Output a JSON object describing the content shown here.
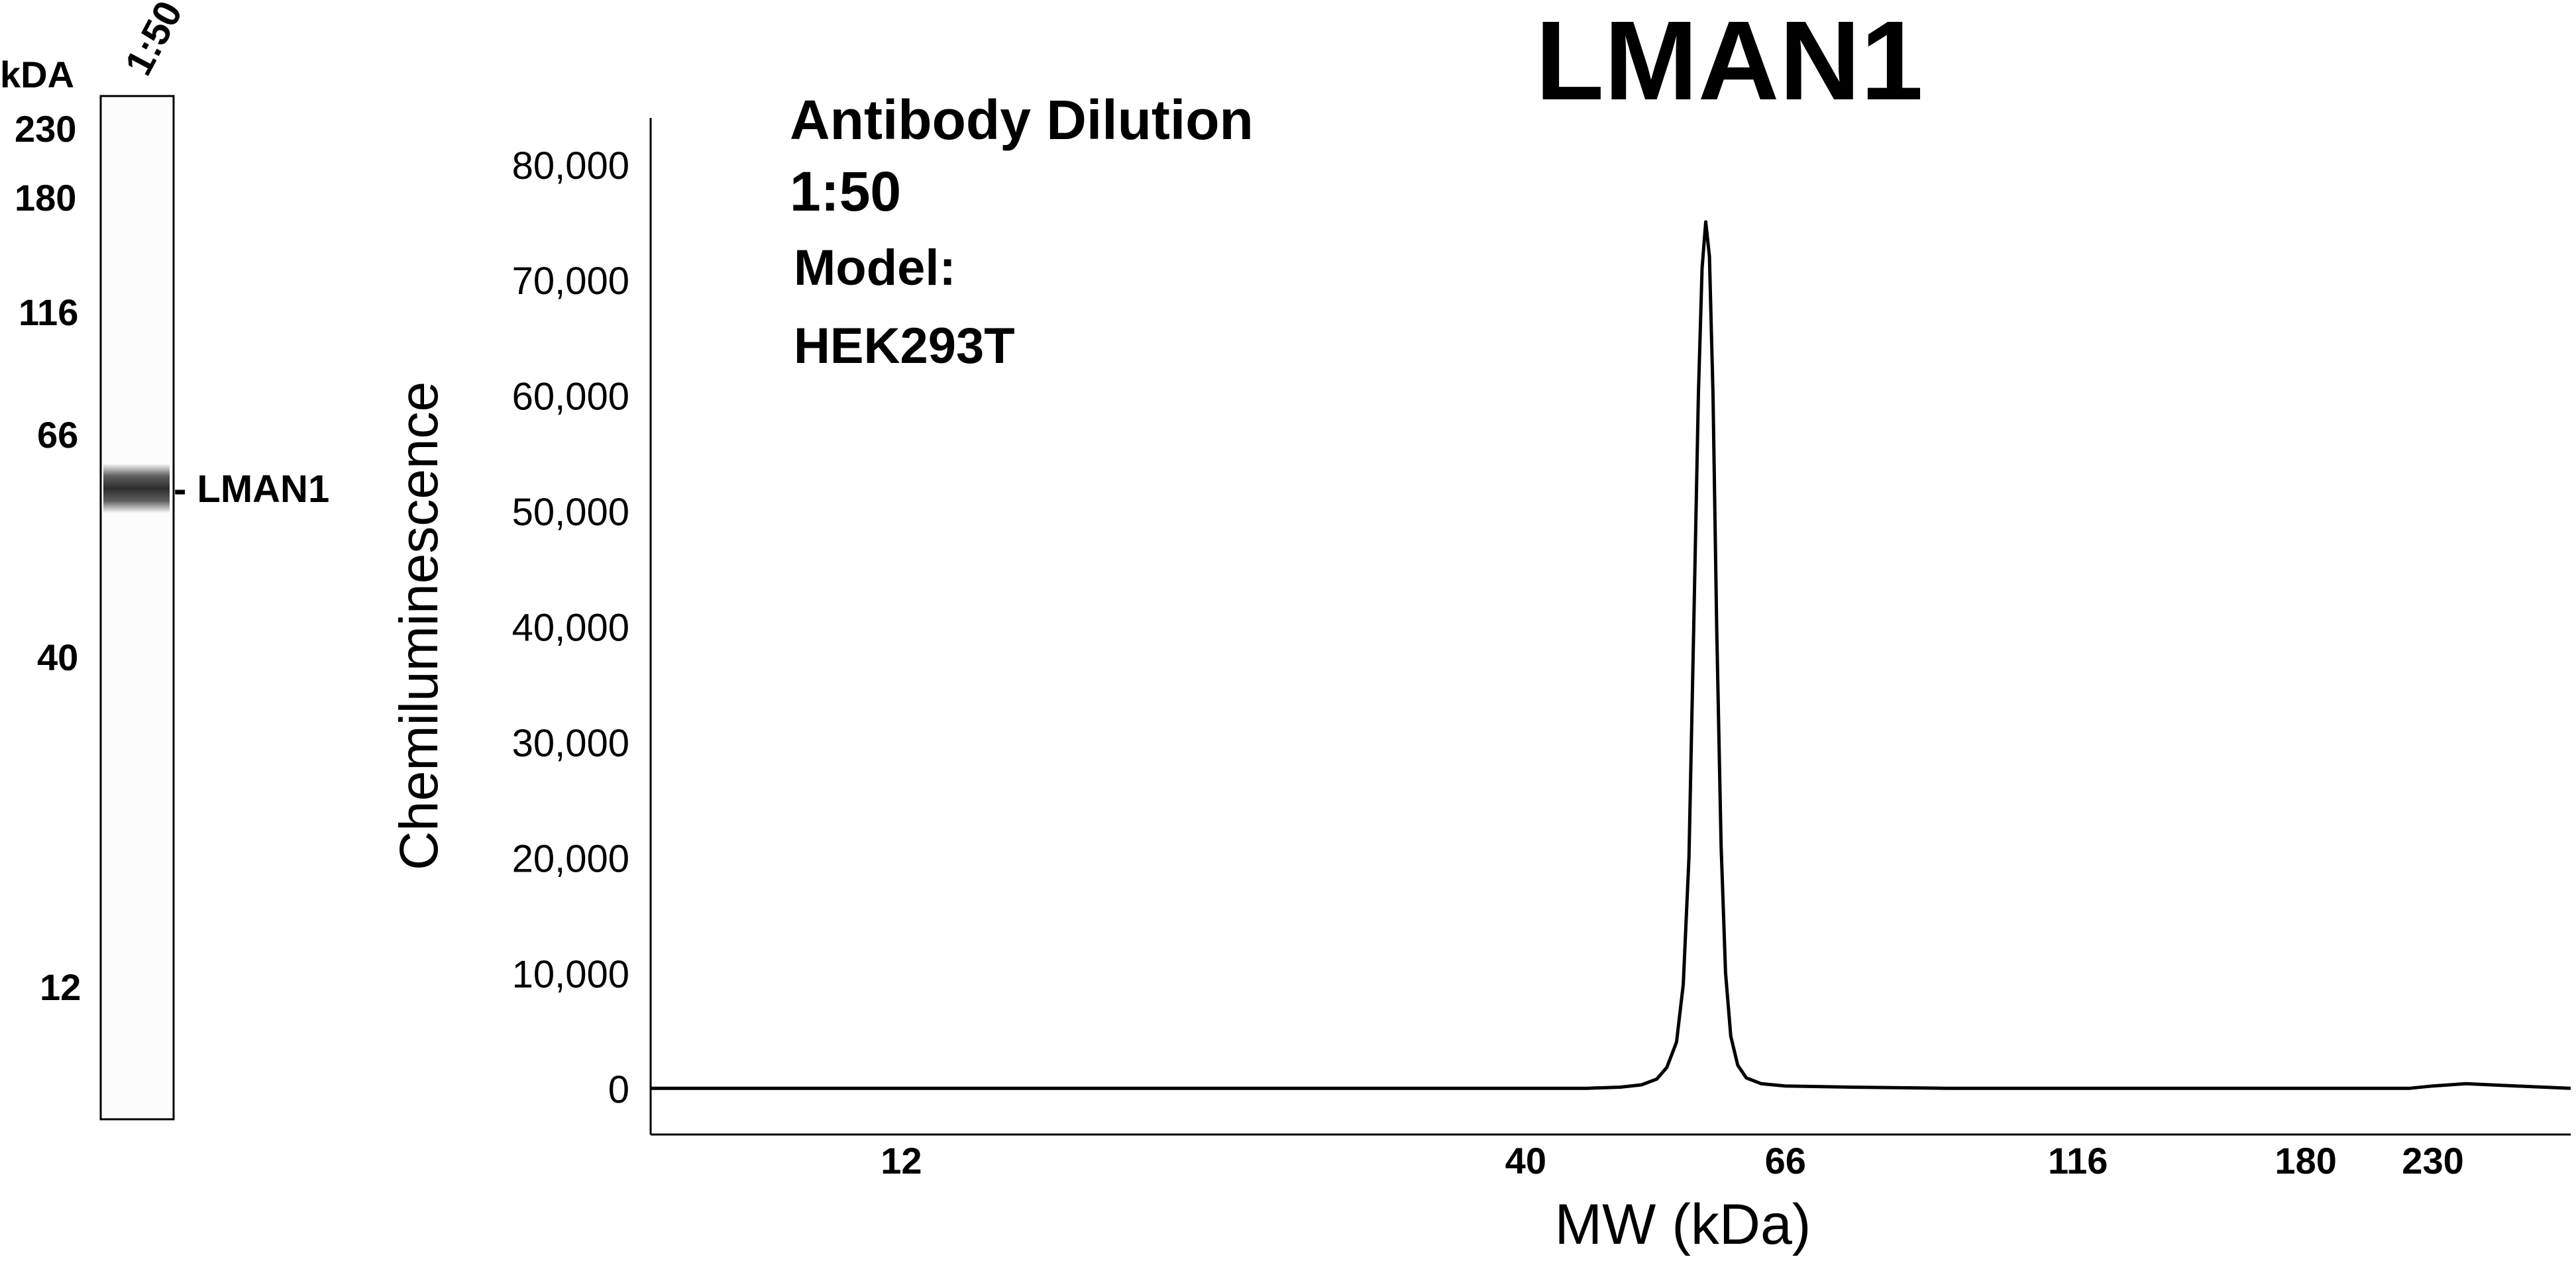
{
  "gel": {
    "unit_label": "kDA",
    "lane_label": "1:50",
    "markers": [
      "230",
      "180",
      "116",
      "66",
      "40",
      "12"
    ],
    "band_label": "- LMAN1"
  },
  "annotation": {
    "line1": "Antibody Dilution",
    "line2": "1:50",
    "line3": "Model:",
    "line4": "HEK293T"
  },
  "chart_data": {
    "type": "line",
    "title": "LMAN1",
    "xlabel": "MW (kDa)",
    "ylabel": "Chemiluminescence",
    "x_scale": "log",
    "x_ticks": [
      12,
      40,
      66,
      116,
      180,
      230
    ],
    "x_tick_labels": [
      "12",
      "40",
      "66",
      "116",
      "180",
      "230"
    ],
    "xlim": [
      7.4,
      300
    ],
    "y_ticks": [
      0,
      10000,
      20000,
      30000,
      40000,
      50000,
      60000,
      70000,
      80000
    ],
    "y_tick_labels": [
      "0",
      "10,000",
      "20,000",
      "30,000",
      "40,000",
      "50,000",
      "60,000",
      "70,000",
      "80,000"
    ],
    "ylim": [
      -4000,
      84000
    ],
    "grid": false,
    "series": [
      {
        "x": [
          7.4,
          10,
          12,
          15,
          20,
          25,
          30,
          35,
          40,
          45,
          48,
          50,
          51.5,
          52.5,
          53.5,
          54.2,
          54.8,
          55.3,
          55.8,
          56.2,
          56.6,
          57.0,
          57.4,
          57.8,
          58.3,
          58.8,
          59.4,
          60.2,
          61.2,
          63,
          66,
          75,
          90,
          116,
          150,
          180,
          200,
          220,
          230,
          245,
          270,
          300
        ],
        "y": [
          0,
          0,
          0,
          0,
          0,
          0,
          0,
          0,
          0,
          0,
          100,
          300,
          800,
          1800,
          4000,
          9000,
          20000,
          40000,
          60000,
          71000,
          75000,
          72000,
          60000,
          40000,
          21000,
          10000,
          4500,
          2000,
          900,
          400,
          200,
          100,
          0,
          0,
          0,
          0,
          0,
          0,
          200,
          400,
          200,
          0
        ]
      }
    ]
  }
}
